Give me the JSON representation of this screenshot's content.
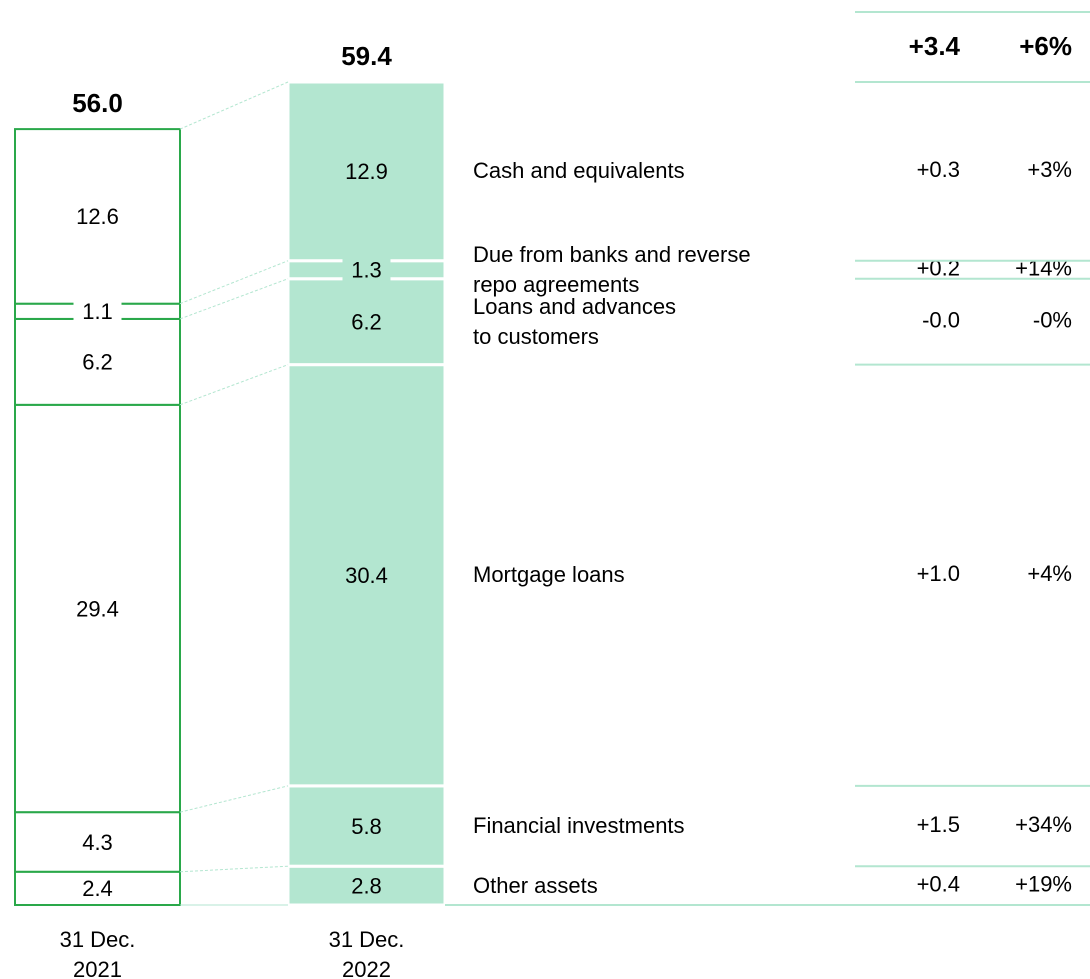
{
  "chart_data": {
    "type": "stacked_bar",
    "categories": [
      "31 Dec.\n2021",
      "31 Dec.\n2022"
    ],
    "colors": [
      "#ffffff",
      "#b3e6d0"
    ],
    "edge_color": "#2aa84a",
    "totals": [
      56.0,
      59.4
    ],
    "total_labels": [
      "56.0",
      "59.4"
    ],
    "total_change": 3.4,
    "total_change_label": "+3.4",
    "total_change_pct": 6,
    "total_change_pct_label": "+6%",
    "series": [
      {
        "name": "Cash and equivalents",
        "values": [
          12.6,
          12.9
        ],
        "change": 0.3,
        "change_label": "+0.3",
        "change_pct": 3,
        "change_pct_label": "+3%"
      },
      {
        "name": "Due from banks and reverse\nrepo agreements",
        "values": [
          1.1,
          1.3
        ],
        "change": 0.2,
        "change_label": "+0.2",
        "change_pct": 14,
        "change_pct_label": "+14%"
      },
      {
        "name": "Loans and advances\nto customers",
        "values": [
          6.2,
          6.2
        ],
        "change": 0,
        "change_label": "-0.0",
        "change_pct": 0,
        "change_pct_label": "-0%"
      },
      {
        "name": "Mortgage loans",
        "values": [
          29.4,
          30.4
        ],
        "change": 1.0,
        "change_label": "+1.0",
        "change_pct": 4,
        "change_pct_label": "+4%"
      },
      {
        "name": "Financial investments",
        "values": [
          4.3,
          5.8
        ],
        "change": 1.5,
        "change_label": "+1.5",
        "change_pct": 34,
        "change_pct_label": "+34%"
      },
      {
        "name": "Other assets",
        "values": [
          2.4,
          2.8
        ],
        "change": 0.4,
        "change_label": "+0.4",
        "change_pct": 19,
        "change_pct_label": "+19%"
      }
    ]
  }
}
